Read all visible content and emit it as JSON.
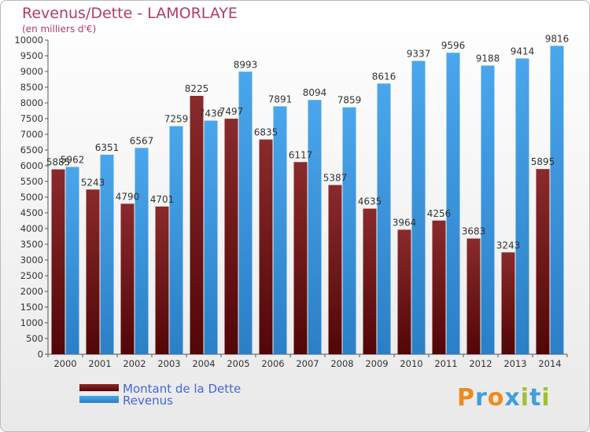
{
  "header": {
    "title": "Revenus/Dette - LAMORLAYE",
    "subtitle": "(en milliers d'€)"
  },
  "chart_data": {
    "type": "bar",
    "title": "Revenus/Dette - LAMORLAYE",
    "subtitle": "(en milliers d'€)",
    "categories": [
      "2000",
      "2001",
      "2002",
      "2003",
      "2004",
      "2005",
      "2006",
      "2007",
      "2008",
      "2009",
      "2010",
      "2011",
      "2012",
      "2013",
      "2014"
    ],
    "series": [
      {
        "name": "Montant de la Dette",
        "color": "#7a1f22",
        "values": [
          5885,
          5243,
          4790,
          4701,
          8225,
          7497,
          6835,
          6117,
          5387,
          4635,
          3964,
          4256,
          3683,
          3243,
          5895
        ],
        "labels": [
          "5885",
          "5243",
          "4790",
          "4701",
          "8225",
          "7497",
          "6835",
          "6117",
          "5387",
          "4635",
          "3964",
          "4256",
          "3683",
          "3243",
          "5895"
        ]
      },
      {
        "name": "Revenus",
        "color": "#3a95dd",
        "values": [
          5962,
          6351,
          6567,
          7259,
          7436,
          8993,
          7891,
          8094,
          7859,
          8616,
          9337,
          9596,
          9188,
          9414,
          9816
        ],
        "labels": [
          "5962",
          "6351",
          "6567",
          "7259",
          "7436",
          "8993",
          "7891",
          "8094",
          "7859",
          "8616",
          "9337",
          "9596",
          "9188",
          "9414",
          "9816"
        ]
      }
    ],
    "ylim": [
      0,
      10000
    ],
    "ytick_step": 500,
    "grid": false,
    "legend_placement": "bottom-left"
  },
  "legend": [
    {
      "label": "Montant de la Dette",
      "color": "#7a1f22"
    },
    {
      "label": "Revenus",
      "color": "#3a95dd"
    }
  ],
  "logo": {
    "letters": [
      "P",
      "r",
      "o",
      "x",
      "i",
      "t",
      "i"
    ],
    "colors": [
      "#f08a1c",
      "#3f9fdb",
      "#f08a1c",
      "#3f9fdb",
      "#9cc233",
      "#3f9fdb",
      "#9cc233"
    ]
  }
}
